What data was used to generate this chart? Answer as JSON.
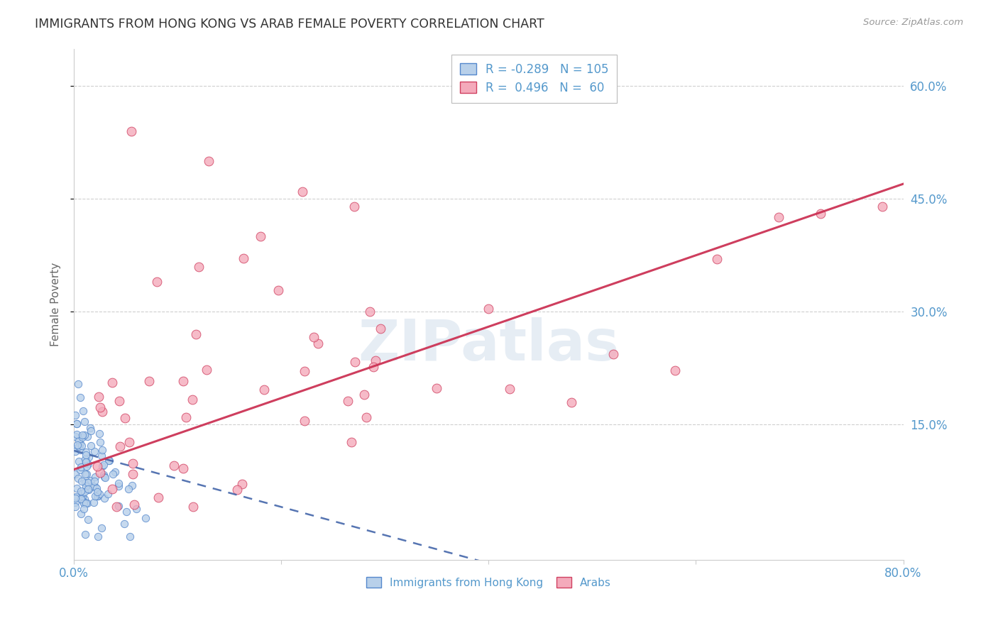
{
  "title": "IMMIGRANTS FROM HONG KONG VS ARAB FEMALE POVERTY CORRELATION CHART",
  "source": "Source: ZipAtlas.com",
  "ylabel": "Female Poverty",
  "watermark": "ZIPatlas",
  "ytick_labels": [
    "15.0%",
    "30.0%",
    "45.0%",
    "60.0%"
  ],
  "ytick_values": [
    0.15,
    0.3,
    0.45,
    0.6
  ],
  "hk_R": -0.289,
  "hk_N": 105,
  "arab_R": 0.496,
  "arab_N": 60,
  "hk_color": "#b8d0ea",
  "hk_edge_color": "#5588cc",
  "arab_color": "#f4aabb",
  "arab_edge_color": "#d04060",
  "hk_line_color": "#4466aa",
  "arab_line_color": "#cc3355",
  "xmin": 0.0,
  "xmax": 0.8,
  "ymin": -0.03,
  "ymax": 0.65,
  "background_color": "#ffffff",
  "grid_color": "#bbbbbb",
  "title_color": "#333333",
  "source_color": "#999999",
  "axis_label_color": "#5599cc",
  "ytick_color": "#5599cc",
  "legend_label_color": "#5599cc",
  "legend_labels_bottom": [
    "Immigrants from Hong Kong",
    "Arabs"
  ]
}
